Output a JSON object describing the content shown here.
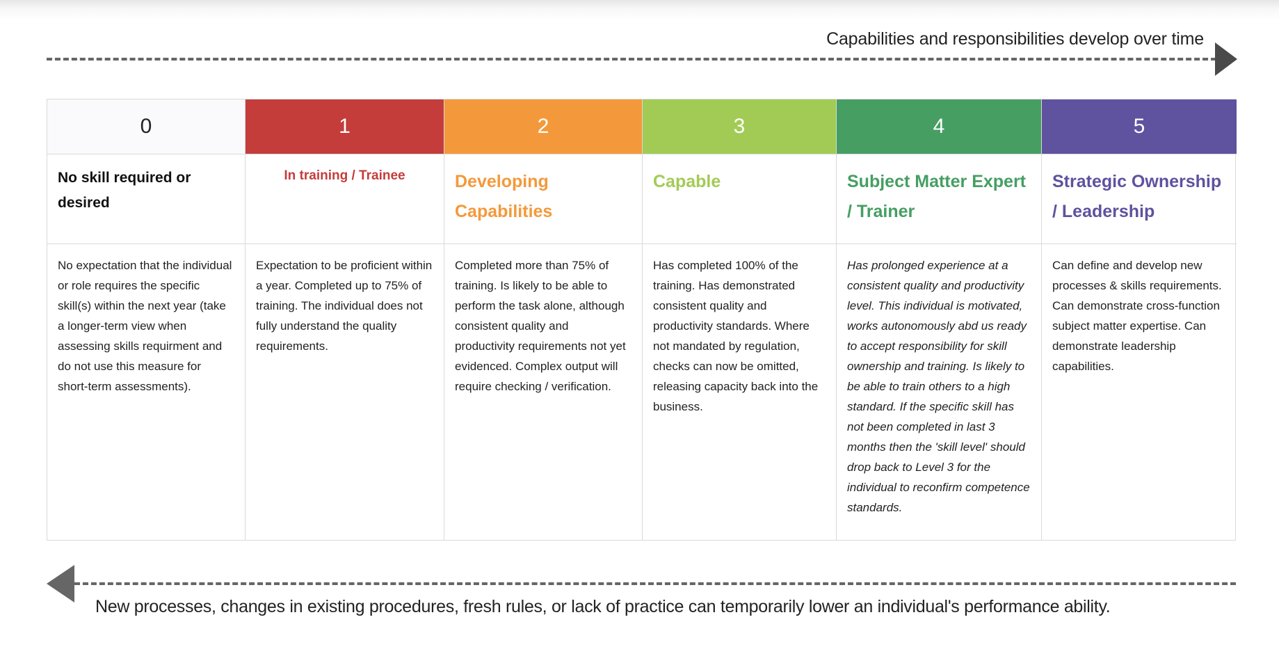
{
  "top_arrow": {
    "caption": "Capabilities and responsibilities develop over time",
    "direction": "right",
    "icon": "arrow-right-icon",
    "color": "#4a4a4a"
  },
  "levels": [
    {
      "number": "0",
      "title": "No skill required or desired",
      "description": "No expectation that the individual or role requires the specific skill(s) within the next year (take a longer-term view when assessing skills requirment and do not use this measure for short-term assessments).",
      "header_color": "#fafafd",
      "title_color": "#111111",
      "italic": false
    },
    {
      "number": "1",
      "title": "In training / Trainee",
      "description": "Expectation to be proficient within a year. Completed up to 75% of training. The individual does not fully understand the quality requirements.",
      "header_color": "#c43d3b",
      "title_color": "#c43d3b",
      "italic": false
    },
    {
      "number": "2",
      "title": "Developing Capabilities",
      "description": "Completed more than 75% of training. Is likely to be able to perform the task alone, although consistent quality and productivity requirements not yet evidenced. Complex output will require checking / verification.",
      "header_color": "#f4993b",
      "title_color": "#f4993b",
      "italic": false
    },
    {
      "number": "3",
      "title": "Capable",
      "description": "Has completed 100% of the training. Has demonstrated consistent quality and productivity standards. Where not mandated by regulation, checks can now be omitted, releasing capacity back into the business.",
      "header_color": "#a2cb55",
      "title_color": "#a2cb55",
      "italic": false
    },
    {
      "number": "4",
      "title": "Subject Matter Expert / Trainer",
      "description": "Has prolonged experience at a consistent quality and productivity level. This individual is motivated, works autonomously abd us ready to accept responsibility for skill ownership and training. Is likely to be able to train others to a high standard. If the specific skill has not been completed in last 3 months then the 'skill level' should drop back to Level 3 for the individual to reconfirm competence standards.",
      "header_color": "#469e63",
      "title_color": "#469e63",
      "italic": true
    },
    {
      "number": "5",
      "title": "Strategic Ownership / Leadership",
      "description": "Can define and develop new processes & skills requirements. Can demonstrate cross-function subject matter expertise. Can demonstrate leadership capabilities.",
      "header_color": "#5f529f",
      "title_color": "#5f529f",
      "italic": false
    }
  ],
  "bottom_arrow": {
    "caption": "New processes, changes in existing procedures, fresh rules, or lack of practice can temporarily lower an individual's performance ability.",
    "direction": "left",
    "icon": "arrow-left-icon",
    "color": "#666666"
  }
}
